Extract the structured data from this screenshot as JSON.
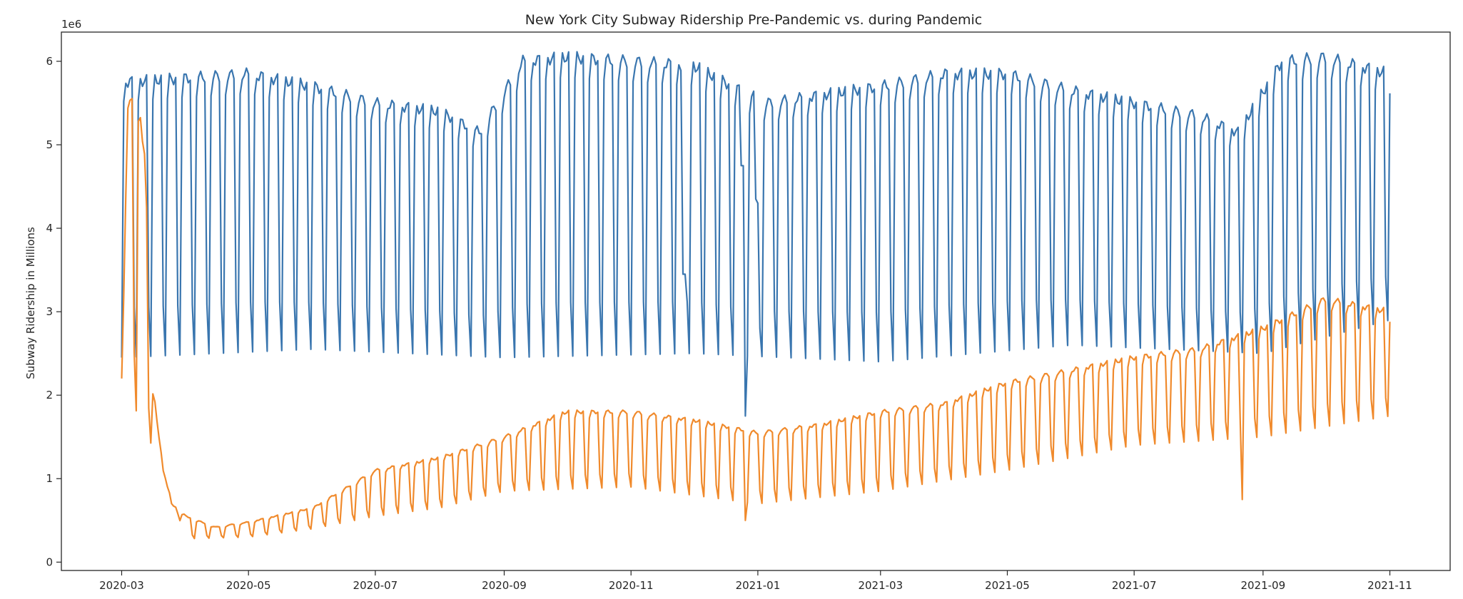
{
  "chart_data": {
    "type": "line",
    "title": "New York City Subway Ridership Pre-Pandemic vs. during Pandemic",
    "xlabel": "",
    "ylabel": "Subway Ridership in Millions",
    "y_offset_label": "1e6",
    "ylim": [
      -100000,
      6350000
    ],
    "xlim": [
      "2020-02-01",
      "2021-11-30"
    ],
    "grid": false,
    "legend": "none",
    "x_ticks": [
      "2020-03",
      "2020-05",
      "2020-07",
      "2020-09",
      "2020-11",
      "2021-01",
      "2021-03",
      "2021-05",
      "2021-07",
      "2021-09",
      "2021-11"
    ],
    "y_ticks": [
      0,
      1,
      2,
      3,
      4,
      5,
      6
    ],
    "x_start": "2020-03-01",
    "x_end": "2021-11-01",
    "series": [
      {
        "color": "#3a76af",
        "weekday_levels": [
          [
            "2020-03-01",
            5750000
          ],
          [
            "2020-04-01",
            5800000
          ],
          [
            "2020-05-01",
            5850000
          ],
          [
            "2020-06-01",
            5700000
          ],
          [
            "2020-07-01",
            5500000
          ],
          [
            "2020-08-01",
            5400000
          ],
          [
            "2020-08-20",
            5150000
          ],
          [
            "2020-09-10",
            6000000
          ],
          [
            "2020-10-01",
            6050000
          ],
          [
            "2020-11-01",
            6000000
          ],
          [
            "2020-12-01",
            5950000
          ],
          [
            "2020-12-20",
            5700000
          ],
          [
            "2021-01-05",
            5500000
          ],
          [
            "2021-02-01",
            5600000
          ],
          [
            "2021-03-01",
            5700000
          ],
          [
            "2021-04-01",
            5850000
          ],
          [
            "2021-05-01",
            5850000
          ],
          [
            "2021-06-01",
            5650000
          ],
          [
            "2021-07-01",
            5500000
          ],
          [
            "2021-08-01",
            5350000
          ],
          [
            "2021-08-20",
            5150000
          ],
          [
            "2021-09-10",
            6000000
          ],
          [
            "2021-10-01",
            6050000
          ],
          [
            "2021-11-01",
            5850000
          ]
        ],
        "weekend_levels": [
          [
            "2020-03-01",
            2450000
          ],
          [
            "2020-06-01",
            2550000
          ],
          [
            "2020-09-01",
            2450000
          ],
          [
            "2020-12-01",
            2500000
          ],
          [
            "2021-03-01",
            2400000
          ],
          [
            "2021-06-01",
            2600000
          ],
          [
            "2021-09-01",
            2500000
          ],
          [
            "2021-11-01",
            2900000
          ]
        ],
        "special_points": [
          [
            "2020-12-24",
            4750000
          ],
          [
            "2020-12-25",
            4750000
          ],
          [
            "2020-12-26",
            1750000
          ],
          [
            "2020-12-31",
            4350000
          ],
          [
            "2021-01-01",
            4300000
          ],
          [
            "2021-01-02",
            2800000
          ],
          [
            "2020-11-26",
            3450000
          ],
          [
            "2020-11-27",
            3450000
          ]
        ]
      },
      {
        "color": "#f08a2c",
        "weekday_levels": [
          [
            "2020-03-01",
            2250000
          ],
          [
            "2020-03-04",
            5500000
          ],
          [
            "2020-03-09",
            5500000
          ],
          [
            "2020-03-12",
            4900000
          ],
          [
            "2020-03-16",
            2100000
          ],
          [
            "2020-03-20",
            1300000
          ],
          [
            "2020-03-25",
            700000
          ],
          [
            "2020-04-01",
            550000
          ],
          [
            "2020-04-15",
            420000
          ],
          [
            "2020-05-01",
            480000
          ],
          [
            "2020-06-01",
            650000
          ],
          [
            "2020-07-01",
            1100000
          ],
          [
            "2020-08-01",
            1250000
          ],
          [
            "2020-09-01",
            1500000
          ],
          [
            "2020-10-01",
            1800000
          ],
          [
            "2020-11-01",
            1800000
          ],
          [
            "2020-12-01",
            1700000
          ],
          [
            "2021-01-01",
            1550000
          ],
          [
            "2021-02-01",
            1650000
          ],
          [
            "2021-03-01",
            1800000
          ],
          [
            "2021-04-01",
            1900000
          ],
          [
            "2021-05-01",
            2150000
          ],
          [
            "2021-06-01",
            2300000
          ],
          [
            "2021-07-01",
            2450000
          ],
          [
            "2021-08-01",
            2550000
          ],
          [
            "2021-09-01",
            2800000
          ],
          [
            "2021-10-01",
            3150000
          ],
          [
            "2021-11-01",
            3000000
          ]
        ],
        "weekend_levels": [
          [
            "2020-03-01",
            2200000
          ],
          [
            "2020-03-20",
            1150000
          ],
          [
            "2020-04-01",
            280000
          ],
          [
            "2020-05-01",
            300000
          ],
          [
            "2020-06-01",
            400000
          ],
          [
            "2020-07-01",
            550000
          ],
          [
            "2020-08-01",
            650000
          ],
          [
            "2020-09-01",
            850000
          ],
          [
            "2020-11-01",
            900000
          ],
          [
            "2021-01-01",
            700000
          ],
          [
            "2021-03-01",
            850000
          ],
          [
            "2021-05-01",
            1100000
          ],
          [
            "2021-07-01",
            1400000
          ],
          [
            "2021-09-01",
            1500000
          ],
          [
            "2021-11-01",
            1750000
          ]
        ],
        "special_points": [
          [
            "2021-08-22",
            750000
          ],
          [
            "2020-12-26",
            500000
          ]
        ]
      }
    ]
  }
}
